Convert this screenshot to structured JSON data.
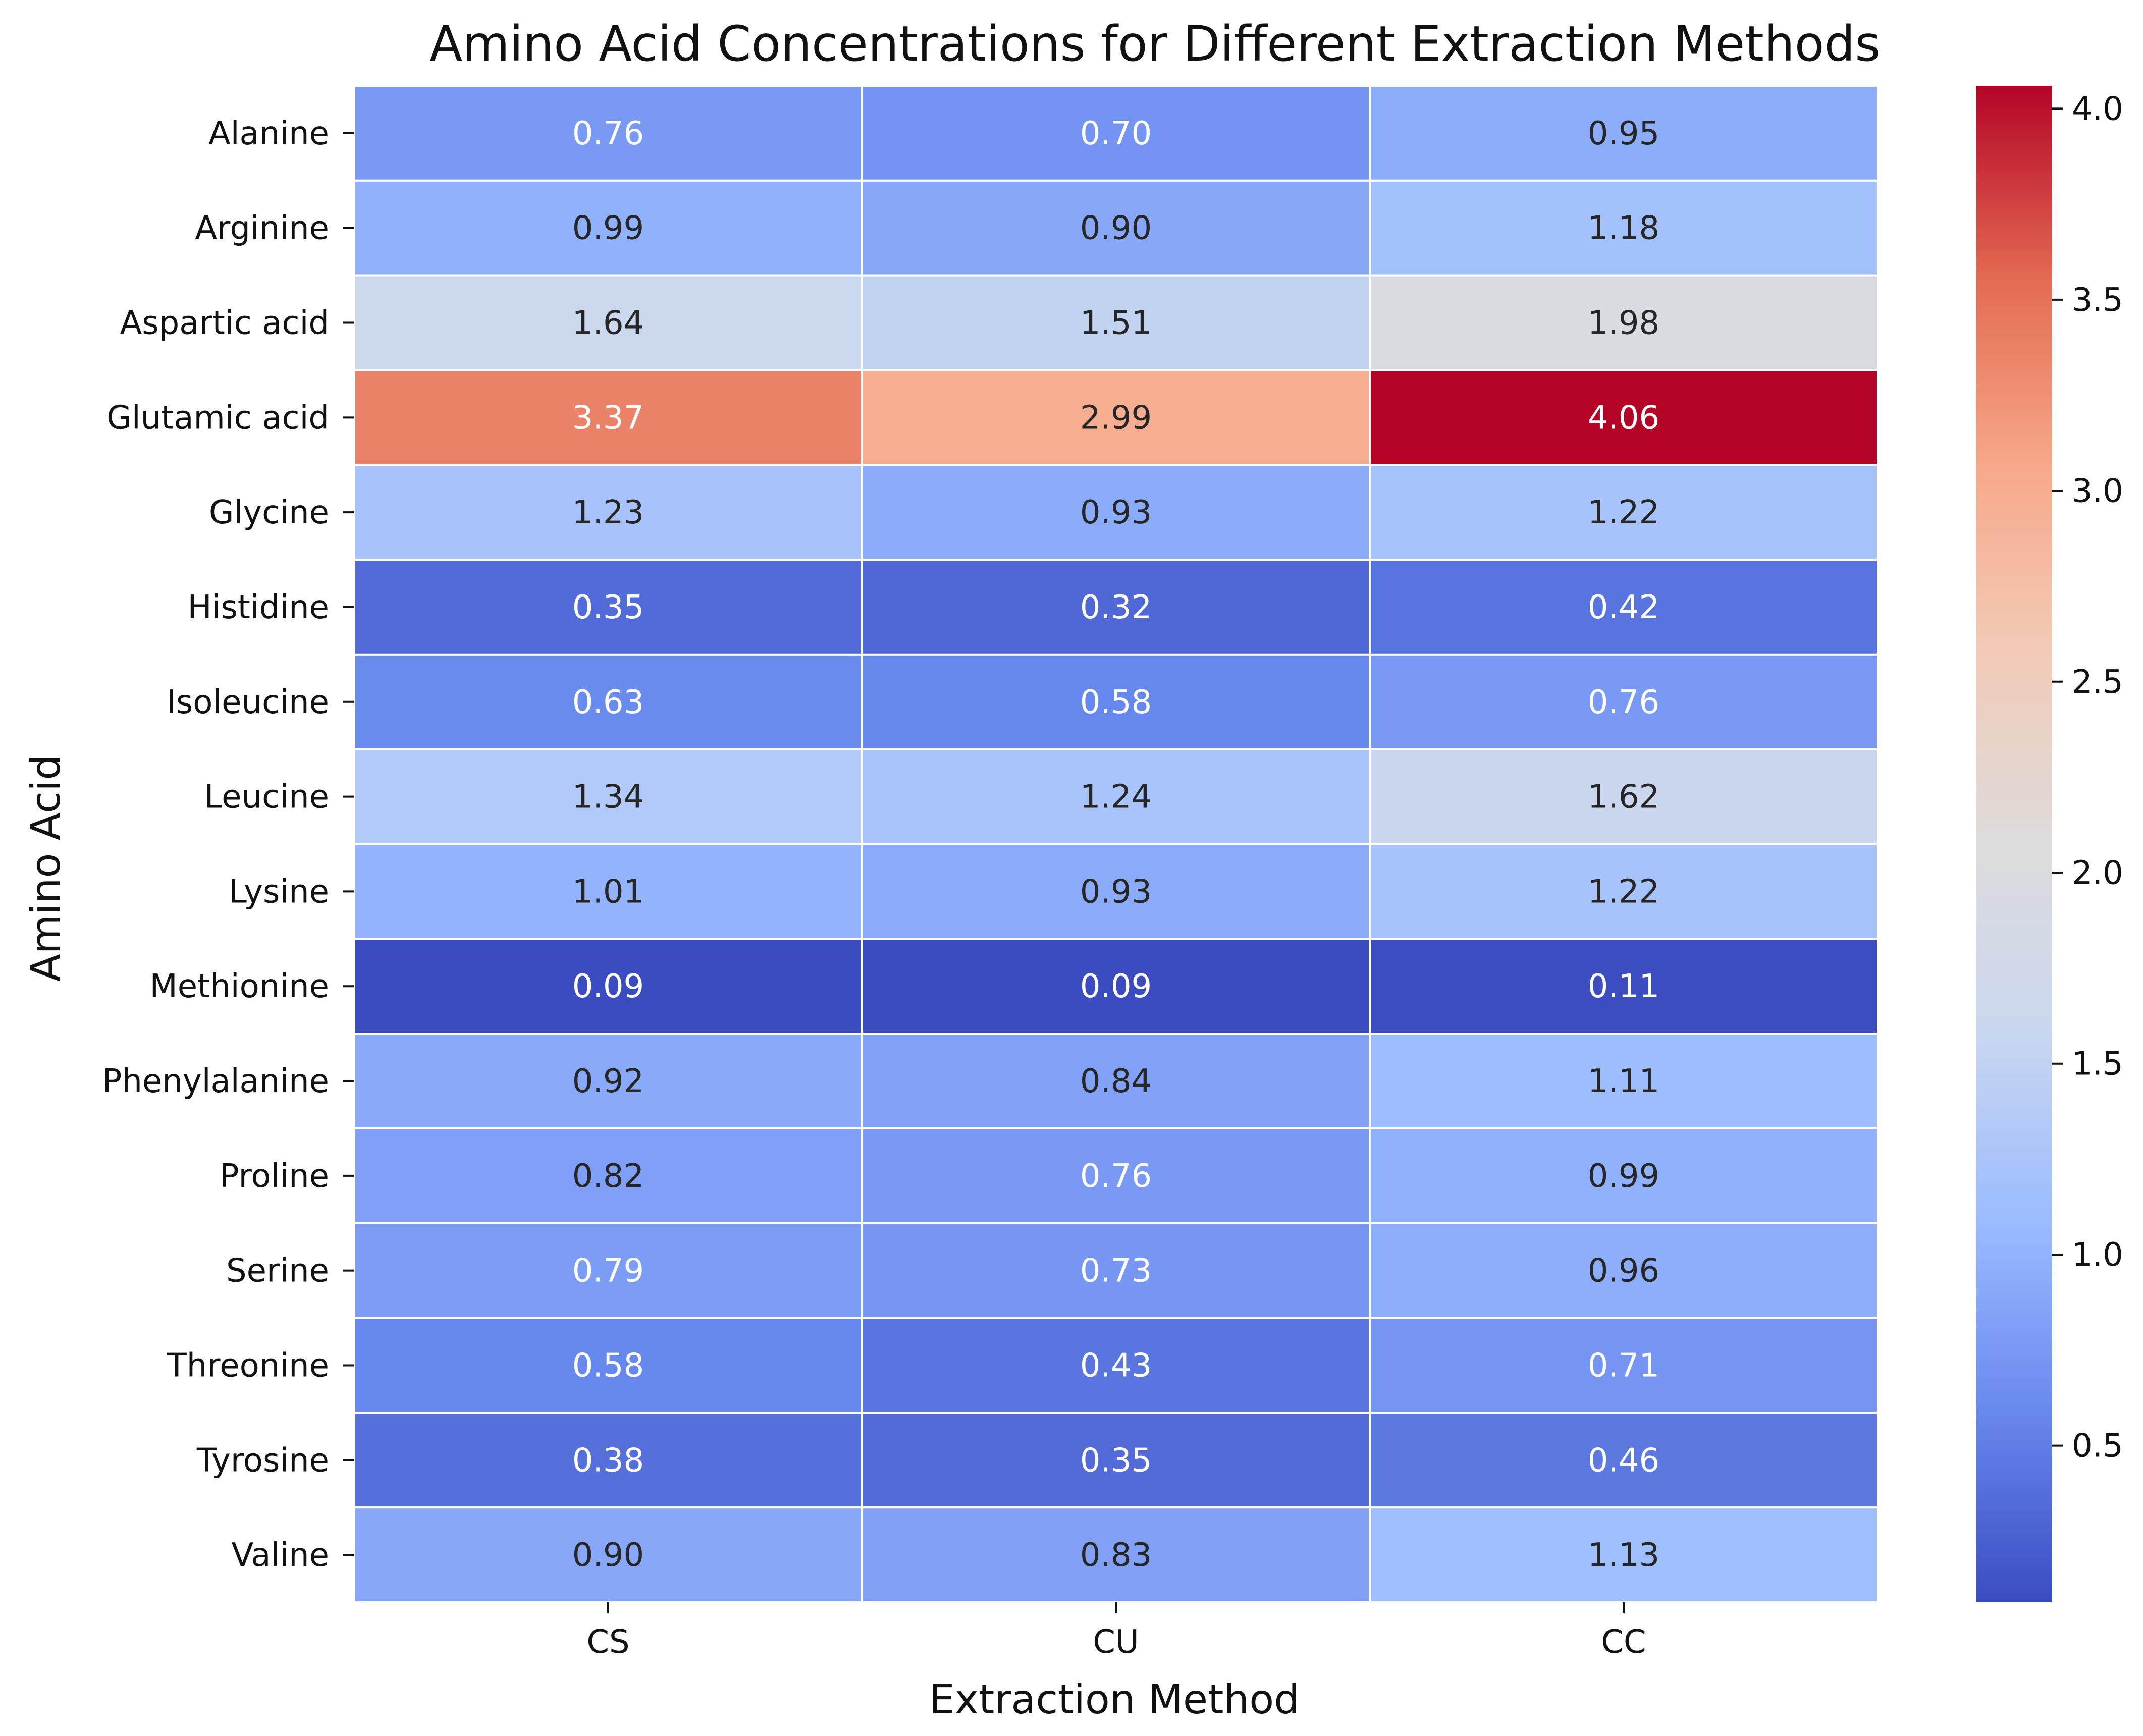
{
  "chart_data": {
    "type": "heatmap",
    "title": "Amino Acid Concentrations for Different Extraction Methods",
    "xlabel": "Extraction Method",
    "ylabel": "Amino Acid",
    "columns": [
      "CS",
      "CU",
      "CC"
    ],
    "rows": [
      "Alanine",
      "Arginine",
      "Aspartic acid",
      "Glutamic acid",
      "Glycine",
      "Histidine",
      "Isoleucine",
      "Leucine",
      "Lysine",
      "Methionine",
      "Phenylalanine",
      "Proline",
      "Serine",
      "Threonine",
      "Tyrosine",
      "Valine"
    ],
    "values": [
      [
        0.76,
        0.7,
        0.95
      ],
      [
        0.99,
        0.9,
        1.18
      ],
      [
        1.64,
        1.51,
        1.98
      ],
      [
        3.37,
        2.99,
        4.06
      ],
      [
        1.23,
        0.93,
        1.22
      ],
      [
        0.35,
        0.32,
        0.42
      ],
      [
        0.63,
        0.58,
        0.76
      ],
      [
        1.34,
        1.24,
        1.62
      ],
      [
        1.01,
        0.93,
        1.22
      ],
      [
        0.09,
        0.09,
        0.11
      ],
      [
        0.92,
        0.84,
        1.11
      ],
      [
        0.82,
        0.76,
        0.99
      ],
      [
        0.79,
        0.73,
        0.96
      ],
      [
        0.58,
        0.43,
        0.71
      ],
      [
        0.38,
        0.35,
        0.46
      ],
      [
        0.9,
        0.83,
        1.13
      ]
    ],
    "value_labels": [
      [
        "0.76",
        "0.70",
        "0.95"
      ],
      [
        "0.99",
        "0.90",
        "1.18"
      ],
      [
        "1.64",
        "1.51",
        "1.98"
      ],
      [
        "3.37",
        "2.99",
        "4.06"
      ],
      [
        "1.23",
        "0.93",
        "1.22"
      ],
      [
        "0.35",
        "0.32",
        "0.42"
      ],
      [
        "0.63",
        "0.58",
        "0.76"
      ],
      [
        "1.34",
        "1.24",
        "1.62"
      ],
      [
        "1.01",
        "0.93",
        "1.22"
      ],
      [
        "0.09",
        "0.09",
        "0.11"
      ],
      [
        "0.92",
        "0.84",
        "1.11"
      ],
      [
        "0.82",
        "0.76",
        "0.99"
      ],
      [
        "0.79",
        "0.73",
        "0.96"
      ],
      [
        "0.58",
        "0.43",
        "0.71"
      ],
      [
        "0.38",
        "0.35",
        "0.46"
      ],
      [
        "0.90",
        "0.83",
        "1.13"
      ]
    ],
    "colormap": "coolwarm",
    "colorbar": {
      "range": [
        0.09,
        4.06
      ],
      "ticks": [
        0.5,
        1.0,
        1.5,
        2.0,
        2.5,
        3.0,
        3.5,
        4.0
      ],
      "tick_labels": [
        "0.5",
        "1.0",
        "1.5",
        "2.0",
        "2.5",
        "3.0",
        "3.5",
        "4.0"
      ]
    },
    "annotations": true,
    "cell_separator_color": "#ffffff"
  },
  "colors": {
    "coolwarm_stops": [
      "#3b4cc0",
      "#6788ee",
      "#9abbff",
      "#c9d7f0",
      "#dddcdc",
      "#f2cbb7",
      "#f7a889",
      "#e26952",
      "#b40426"
    ],
    "text_dark": "#262626",
    "text_light": "#ffffff",
    "axis": "#111111"
  }
}
